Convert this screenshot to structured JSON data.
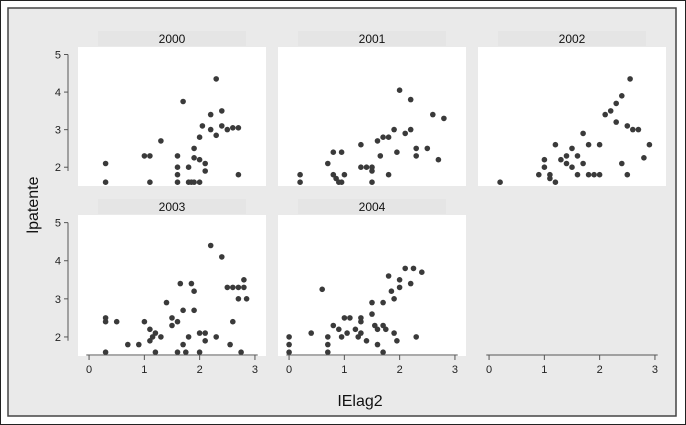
{
  "chart_data": {
    "type": "scatter",
    "layout": "facet-by-year",
    "xlabel": "IElag2",
    "ylabel": "lpatente",
    "xlim": [
      -0.2,
      3.2
    ],
    "ylim": [
      1.5,
      5.2
    ],
    "xticks": [
      0,
      1,
      2,
      3
    ],
    "yticks": [
      2,
      3,
      4,
      5
    ],
    "grid": false,
    "point_color": "#3a3a3a",
    "strip_color": "#e5e5e5",
    "panel_bg": "#ffffff",
    "plot_bg": "#eaeaea",
    "panels": [
      {
        "label": "2000",
        "points": [
          [
            0.3,
            2.1
          ],
          [
            0.3,
            1.6
          ],
          [
            1.0,
            2.3
          ],
          [
            1.1,
            2.3
          ],
          [
            1.1,
            1.6
          ],
          [
            1.3,
            2.7
          ],
          [
            1.6,
            2.3
          ],
          [
            1.6,
            2.0
          ],
          [
            1.6,
            1.8
          ],
          [
            1.6,
            1.6
          ],
          [
            1.7,
            3.75
          ],
          [
            1.8,
            2.0
          ],
          [
            1.8,
            1.6
          ],
          [
            1.85,
            1.6
          ],
          [
            1.9,
            1.6
          ],
          [
            1.9,
            2.25
          ],
          [
            1.9,
            2.5
          ],
          [
            2.0,
            2.2
          ],
          [
            2.0,
            2.8
          ],
          [
            2.0,
            1.6
          ],
          [
            2.05,
            3.1
          ],
          [
            2.1,
            2.1
          ],
          [
            2.1,
            1.9
          ],
          [
            2.2,
            3.4
          ],
          [
            2.2,
            3.0
          ],
          [
            2.3,
            2.85
          ],
          [
            2.3,
            4.35
          ],
          [
            2.4,
            3.5
          ],
          [
            2.4,
            3.1
          ],
          [
            2.5,
            3.0
          ],
          [
            2.6,
            3.05
          ],
          [
            2.7,
            3.05
          ],
          [
            2.7,
            1.8
          ]
        ]
      },
      {
        "label": "2001",
        "points": [
          [
            0.2,
            1.8
          ],
          [
            0.2,
            1.6
          ],
          [
            0.7,
            2.1
          ],
          [
            0.8,
            2.4
          ],
          [
            0.8,
            1.8
          ],
          [
            0.85,
            1.7
          ],
          [
            0.9,
            1.6
          ],
          [
            0.95,
            2.4
          ],
          [
            0.95,
            1.6
          ],
          [
            1.0,
            1.8
          ],
          [
            1.3,
            2.0
          ],
          [
            1.3,
            2.6
          ],
          [
            1.4,
            2.0
          ],
          [
            1.5,
            2.0
          ],
          [
            1.5,
            1.9
          ],
          [
            1.5,
            1.6
          ],
          [
            1.6,
            2.7
          ],
          [
            1.65,
            2.3
          ],
          [
            1.7,
            2.8
          ],
          [
            1.8,
            1.8
          ],
          [
            1.8,
            2.8
          ],
          [
            1.9,
            3.0
          ],
          [
            1.95,
            2.4
          ],
          [
            2.0,
            4.05
          ],
          [
            2.1,
            2.9
          ],
          [
            2.2,
            3.0
          ],
          [
            2.2,
            3.8
          ],
          [
            2.3,
            2.3
          ],
          [
            2.3,
            2.5
          ],
          [
            2.5,
            2.5
          ],
          [
            2.6,
            3.4
          ],
          [
            2.7,
            2.2
          ],
          [
            2.8,
            3.3
          ]
        ]
      },
      {
        "label": "2002",
        "points": [
          [
            0.2,
            1.6
          ],
          [
            0.9,
            1.8
          ],
          [
            1.0,
            2.2
          ],
          [
            1.0,
            2.0
          ],
          [
            1.1,
            1.8
          ],
          [
            1.1,
            1.7
          ],
          [
            1.2,
            2.6
          ],
          [
            1.2,
            1.6
          ],
          [
            1.3,
            2.2
          ],
          [
            1.4,
            2.3
          ],
          [
            1.4,
            2.1
          ],
          [
            1.5,
            2.0
          ],
          [
            1.5,
            2.5
          ],
          [
            1.6,
            2.3
          ],
          [
            1.6,
            1.8
          ],
          [
            1.7,
            2.9
          ],
          [
            1.7,
            2.1
          ],
          [
            1.8,
            2.6
          ],
          [
            1.8,
            1.8
          ],
          [
            1.9,
            1.8
          ],
          [
            2.0,
            2.6
          ],
          [
            2.0,
            1.8
          ],
          [
            2.1,
            3.4
          ],
          [
            2.2,
            3.5
          ],
          [
            2.3,
            3.7
          ],
          [
            2.3,
            3.2
          ],
          [
            2.4,
            3.9
          ],
          [
            2.4,
            2.1
          ],
          [
            2.5,
            3.1
          ],
          [
            2.5,
            1.8
          ],
          [
            2.55,
            4.35
          ],
          [
            2.6,
            3.0
          ],
          [
            2.7,
            3.0
          ],
          [
            2.8,
            2.25
          ],
          [
            2.9,
            2.6
          ]
        ]
      },
      {
        "label": "2003",
        "points": [
          [
            0.3,
            2.5
          ],
          [
            0.3,
            2.4
          ],
          [
            0.3,
            1.6
          ],
          [
            0.5,
            2.4
          ],
          [
            0.7,
            1.8
          ],
          [
            0.9,
            1.8
          ],
          [
            1.0,
            2.4
          ],
          [
            1.1,
            2.2
          ],
          [
            1.1,
            1.9
          ],
          [
            1.15,
            2.0
          ],
          [
            1.2,
            2.1
          ],
          [
            1.2,
            1.6
          ],
          [
            1.3,
            2.0
          ],
          [
            1.4,
            2.9
          ],
          [
            1.5,
            2.3
          ],
          [
            1.5,
            2.5
          ],
          [
            1.6,
            2.4
          ],
          [
            1.6,
            1.6
          ],
          [
            1.65,
            3.4
          ],
          [
            1.7,
            2.7
          ],
          [
            1.7,
            1.8
          ],
          [
            1.75,
            1.6
          ],
          [
            1.8,
            2.0
          ],
          [
            1.85,
            3.4
          ],
          [
            1.9,
            3.2
          ],
          [
            1.9,
            2.7
          ],
          [
            2.0,
            2.1
          ],
          [
            2.0,
            1.6
          ],
          [
            2.1,
            2.1
          ],
          [
            2.1,
            1.9
          ],
          [
            2.2,
            4.4
          ],
          [
            2.3,
            2.0
          ],
          [
            2.4,
            4.1
          ],
          [
            2.5,
            3.3
          ],
          [
            2.55,
            1.8
          ],
          [
            2.6,
            2.4
          ],
          [
            2.6,
            3.3
          ],
          [
            2.7,
            3.0
          ],
          [
            2.7,
            3.3
          ],
          [
            2.8,
            3.5
          ],
          [
            2.8,
            3.3
          ],
          [
            2.85,
            3.0
          ],
          [
            2.75,
            1.6
          ]
        ]
      },
      {
        "label": "2004",
        "points": [
          [
            0.0,
            2.0
          ],
          [
            0.0,
            1.8
          ],
          [
            0.0,
            1.6
          ],
          [
            0.4,
            2.1
          ],
          [
            0.7,
            2.0
          ],
          [
            0.7,
            1.8
          ],
          [
            0.7,
            1.6
          ],
          [
            0.8,
            2.3
          ],
          [
            0.9,
            2.2
          ],
          [
            0.95,
            2.0
          ],
          [
            1.0,
            2.5
          ],
          [
            1.05,
            2.1
          ],
          [
            1.1,
            2.5
          ],
          [
            1.2,
            2.2
          ],
          [
            1.25,
            2.0
          ],
          [
            1.3,
            2.1
          ],
          [
            1.3,
            2.5
          ],
          [
            1.3,
            2.4
          ],
          [
            1.4,
            1.9
          ],
          [
            1.5,
            2.6
          ],
          [
            1.5,
            2.9
          ],
          [
            1.55,
            2.3
          ],
          [
            1.6,
            2.2
          ],
          [
            1.6,
            1.8
          ],
          [
            1.7,
            1.6
          ],
          [
            1.7,
            2.9
          ],
          [
            1.7,
            2.3
          ],
          [
            1.75,
            2.2
          ],
          [
            1.8,
            3.6
          ],
          [
            1.85,
            3.2
          ],
          [
            1.9,
            3.0
          ],
          [
            1.9,
            2.1
          ],
          [
            1.95,
            1.9
          ],
          [
            2.0,
            3.3
          ],
          [
            2.0,
            3.5
          ],
          [
            2.1,
            3.8
          ],
          [
            2.2,
            3.4
          ],
          [
            2.25,
            3.8
          ],
          [
            2.3,
            2.0
          ],
          [
            2.4,
            3.7
          ],
          [
            0.6,
            3.25
          ]
        ]
      }
    ]
  }
}
